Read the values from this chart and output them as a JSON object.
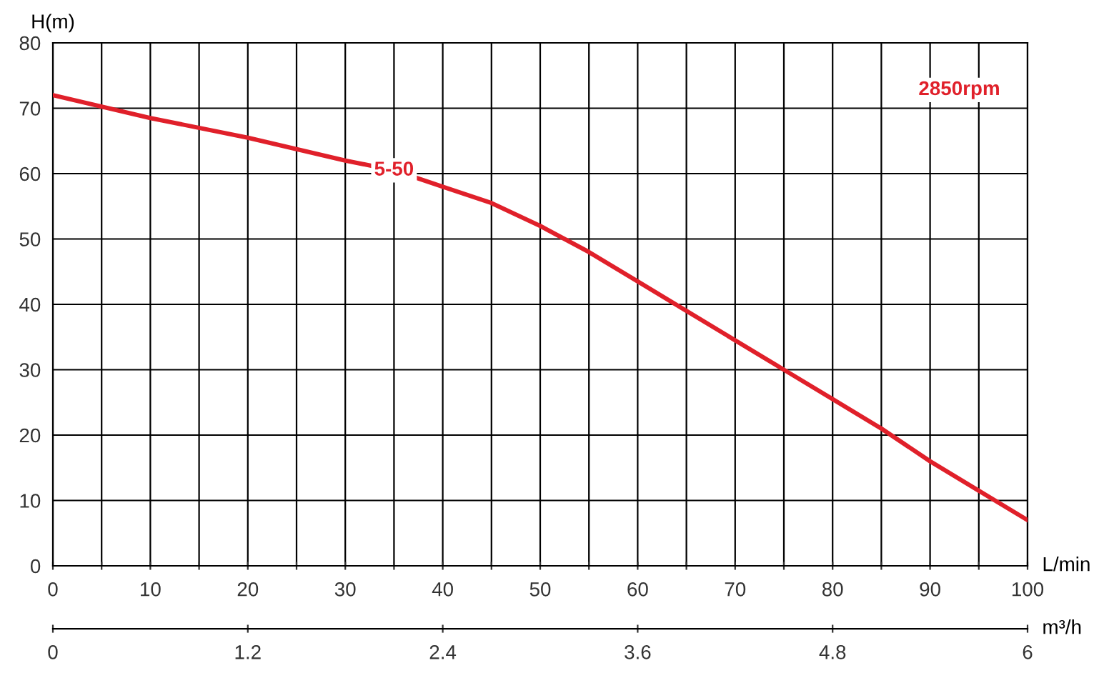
{
  "chart_data": {
    "type": "line",
    "ylabel": "H(m)",
    "xlabel": "L/min",
    "x2label": "m³/h",
    "x": [
      0,
      10,
      20,
      30,
      35,
      40,
      45,
      50,
      55,
      60,
      65,
      70,
      75,
      80,
      85,
      90,
      95,
      100
    ],
    "series": [
      {
        "name": "5-50",
        "color": "#e0202a",
        "values": [
          72,
          68.5,
          65.5,
          62,
          60.5,
          58,
          55.5,
          52,
          48,
          43.5,
          39,
          34.5,
          30,
          25.5,
          21,
          16,
          11.5,
          7
        ]
      }
    ],
    "annotations": [
      "2850rpm"
    ],
    "xlim": [
      0,
      100
    ],
    "xticks": [
      0,
      {
        "value": 5,
        "label": null
      },
      10,
      {
        "value": 15,
        "label": null
      },
      20,
      {
        "value": 25,
        "label": null
      },
      30,
      {
        "value": 35,
        "label": null
      },
      40,
      {
        "value": 45,
        "label": null
      },
      50,
      {
        "value": 55,
        "label": null
      },
      60,
      {
        "value": 65,
        "label": null
      },
      70,
      {
        "value": 75,
        "label": null
      },
      80,
      {
        "value": 85,
        "label": null
      },
      90,
      {
        "value": 95,
        "label": null
      },
      100
    ],
    "ylim": [
      0,
      80
    ],
    "yticks": [
      0,
      10,
      20,
      30,
      40,
      50,
      60,
      70,
      80
    ],
    "x2lim": [
      0,
      6
    ],
    "x2ticks": [
      0,
      1.2,
      2.4,
      3.6,
      4.8,
      6
    ],
    "grid": true,
    "marker": "none",
    "line_style": "solid"
  }
}
